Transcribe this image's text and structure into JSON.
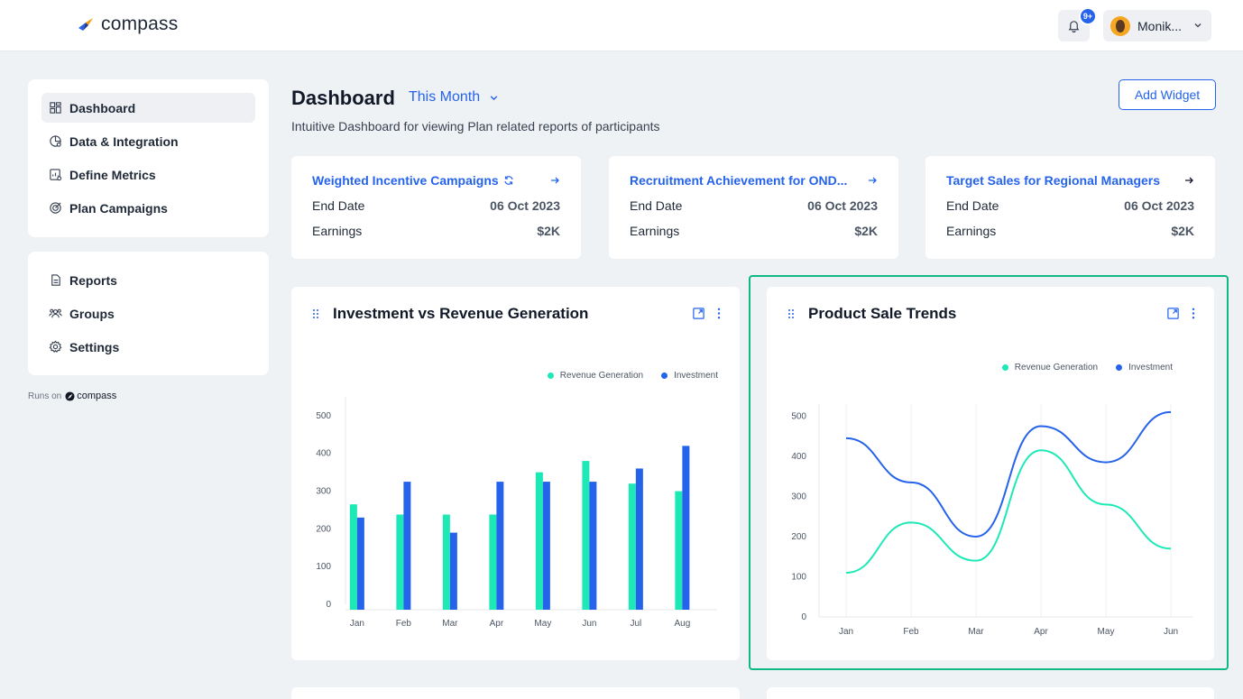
{
  "app": {
    "logo_text": "compass"
  },
  "topbar": {
    "badge": "9+",
    "user_name": "Monik..."
  },
  "sidebar": {
    "group1": [
      {
        "label": "Dashboard",
        "icon": "dashboard-icon",
        "active": true
      },
      {
        "label": "Data & Integration",
        "icon": "data-integration-icon"
      },
      {
        "label": "Define Metrics",
        "icon": "metrics-icon"
      },
      {
        "label": "Plan Campaigns",
        "icon": "campaign-icon"
      }
    ],
    "group2": [
      {
        "label": "Reports",
        "icon": "reports-icon"
      },
      {
        "label": "Groups",
        "icon": "groups-icon"
      },
      {
        "label": "Settings",
        "icon": "settings-icon"
      }
    ],
    "runs_on": "Runs on",
    "runs_on_brand": "compass"
  },
  "header": {
    "title": "Dashboard",
    "period": "This Month",
    "subtitle": "Intuitive Dashboard for viewing Plan related reports of participants",
    "add_widget": "Add Widget"
  },
  "campaigns": [
    {
      "title": "Weighted Incentive Campaigns",
      "end_date_label": "End Date",
      "end_date": "06 Oct 2023",
      "earnings_label": "Earnings",
      "earnings": "$2K"
    },
    {
      "title": "Recruitment Achievement for OND...",
      "end_date_label": "End Date",
      "end_date": "06 Oct 2023",
      "earnings_label": "Earnings",
      "earnings": "$2K"
    },
    {
      "title": "Target Sales for Regional Managers",
      "end_date_label": "End Date",
      "end_date": "06 Oct 2023",
      "earnings_label": "Earnings",
      "earnings": "$2K"
    }
  ],
  "colors": {
    "accent": "#2563eb",
    "revenue": "#1de9b6",
    "investment": "#2563eb",
    "highlight": "#10b981"
  },
  "chart_data": [
    {
      "type": "bar",
      "title": "Investment vs Revenue Generation",
      "categories": [
        "Jan",
        "Feb",
        "Mar",
        "Apr",
        "May",
        "Jun",
        "Jul",
        "Aug"
      ],
      "series": [
        {
          "name": "Revenue Generation",
          "values": [
            265,
            238,
            238,
            238,
            350,
            380,
            320,
            300
          ]
        },
        {
          "name": "Investment",
          "values": [
            230,
            325,
            190,
            325,
            325,
            325,
            360,
            420
          ]
        }
      ],
      "yticks": [
        0,
        100,
        200,
        300,
        400,
        500
      ],
      "ylim": [
        0,
        550
      ],
      "legend": "top-right"
    },
    {
      "type": "line",
      "title": "Product Sale Trends",
      "categories": [
        "Jan",
        "Feb",
        "Mar",
        "Apr",
        "May",
        "Jun"
      ],
      "series": [
        {
          "name": "Revenue Generation",
          "values": [
            110,
            235,
            140,
            415,
            280,
            170
          ]
        },
        {
          "name": "Investment",
          "values": [
            445,
            335,
            200,
            475,
            385,
            510
          ]
        }
      ],
      "yticks": [
        0,
        100,
        200,
        300,
        400,
        500
      ],
      "ylim": [
        0,
        530
      ],
      "legend": "top-right"
    }
  ]
}
